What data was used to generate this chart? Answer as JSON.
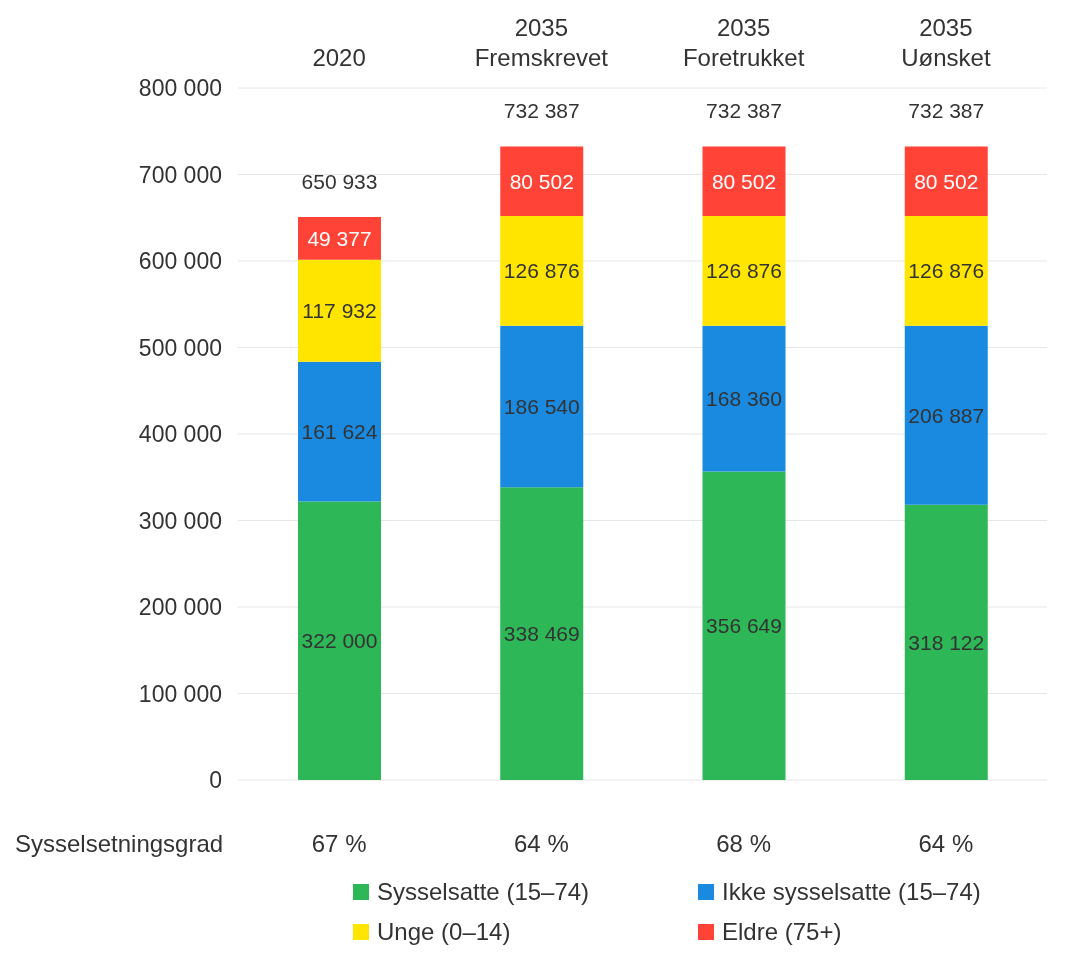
{
  "chart_data": {
    "type": "bar",
    "stacked": true,
    "categories": [
      "2020",
      "2035\nFremskrevet",
      "2035\nForetrukket",
      "2035\nUønsket"
    ],
    "series": [
      {
        "name": "Sysselsatte (15–74)",
        "color": "#2db757",
        "values": [
          322000,
          338469,
          356649,
          318122
        ]
      },
      {
        "name": "Ikke sysselsatte (15–74)",
        "color": "#1a8ae0",
        "values": [
          161624,
          186540,
          168360,
          206887
        ]
      },
      {
        "name": "Unge (0–14)",
        "color": "#ffe500",
        "values": [
          117932,
          126876,
          126876,
          126876
        ]
      },
      {
        "name": "Eldre (75+)",
        "color": "#ff4336",
        "values": [
          49377,
          80502,
          80502,
          80502
        ]
      }
    ],
    "ylim": [
      0,
      800000
    ],
    "yticks": [
      0,
      100000,
      200000,
      300000,
      400000,
      500000,
      600000,
      700000,
      800000
    ],
    "grid": "y",
    "data_labels": true,
    "totals": [
      "650 933",
      "732 387",
      "732 387",
      "732 387"
    ],
    "legend": "bottom",
    "annotations": [
      "Sysselsetningsgrad",
      "67 %",
      "64 %",
      "68 %",
      "64 %"
    ]
  }
}
